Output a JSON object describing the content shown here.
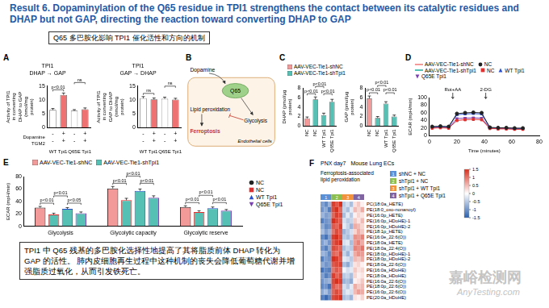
{
  "title": "Result 6. Dopaminylation of the Q65 residue in TPI1 strengthens the contact between its catalytic residues and DHAP but not GAP, directing the reaction toward converting DHAP to GAP",
  "subtitle": "Q65 多巴胺化影响 TPI1 催化活性和方向的机制",
  "summary": "TPI1 中 Q65 残基的多巴胺化选择性地提高了其将脂质前体 DHAP 转化为 GAP 的活性。 肺内皮细胞再生过程中这种机制的丧失会降低葡萄糖代谢并增强脂质过氧化，从而引发铁死亡。",
  "watermark": {
    "name": "嘉峪检测网",
    "site": "AnyTesting.com"
  },
  "diagram": {
    "panel": "B",
    "dopamine": "Dopamine",
    "residue": "Q65",
    "lipid": "Lipid peroxidation",
    "ferroptosis": "Ferroptosis",
    "glycolysis": "Glycolysis",
    "cells": "Endothelial cells"
  },
  "chart_data": [
    {
      "panel": "A",
      "type": "bar",
      "title": "DHAP → GAP",
      "enzyme": "TPI1",
      "y_label": "Activity of TPI1 in converting DHAP to GAP (nmol/mg protein)",
      "categories": [
        [
          "-",
          "-"
        ],
        [
          "+",
          "+"
        ],
        [
          "-",
          "-"
        ],
        [
          "+",
          "+"
        ]
      ],
      "row_labels": [
        "Dopamine",
        "TGM2"
      ],
      "groups": [
        "WT Tpi1",
        "Q65E Tpi1"
      ],
      "values": [
        6.4,
        11.8,
        6.1,
        6.6
      ],
      "errors": [
        0.5,
        0.7,
        0.4,
        0.5
      ],
      "colors": [
        "#ffffff",
        "#ef7272",
        "#ffffff",
        "#ef7272"
      ],
      "ylim": [
        0,
        15
      ],
      "yticks": [
        0,
        5,
        10,
        15
      ],
      "grid": false,
      "annotations": [
        {
          "between": [
            0,
            1
          ],
          "text": "p<0.01"
        },
        {
          "between": [
            2,
            3
          ],
          "text": "ns"
        }
      ]
    },
    {
      "panel": "A",
      "type": "bar",
      "title": "GAP → DHAP",
      "enzyme": "TPI1",
      "y_label": "Activity of TPI1 in converting GAP to DHAP (nmol/mg protein)",
      "categories": [
        [
          "-",
          "-"
        ],
        [
          "+",
          "+"
        ],
        [
          "-",
          "-"
        ],
        [
          "+",
          "+"
        ]
      ],
      "groups": [
        "WT Tpi1",
        "Q65E Tpi1"
      ],
      "values": [
        10.6,
        10.2,
        10.4,
        10.1
      ],
      "errors": [
        0.6,
        0.5,
        0.6,
        0.5
      ],
      "colors": [
        "#ffffff",
        "#ef7272",
        "#ffffff",
        "#ef7272"
      ],
      "ylim": [
        0,
        15
      ],
      "yticks": [
        0,
        5,
        10,
        15
      ],
      "grid": false,
      "annotations": [
        {
          "between": [
            0,
            1
          ],
          "text": "ns"
        },
        {
          "between": [
            2,
            3
          ],
          "text": "ns"
        }
      ]
    },
    {
      "panel": "C",
      "type": "bar",
      "key": [
        {
          "name": "AAV-VEC-Tie1-shNC",
          "color": "#f29a9a"
        },
        {
          "name": "AAV-VEC-Tie1-shTpi1",
          "color": "#56c0b4"
        }
      ],
      "y_label": "DHAP (pmol/μg protein)",
      "categories": [
        "NC",
        "NC",
        "WT Tpi1",
        "Q65E Tpi1"
      ],
      "values": [
        1.6,
        5.6,
        2.3,
        5.1
      ],
      "errors": [
        0.3,
        0.5,
        0.4,
        0.5
      ],
      "colors": [
        "#f29a9a",
        "#56c0b4",
        "#56c0b4",
        "#56c0b4"
      ],
      "ylim": [
        0,
        8
      ],
      "yticks": [
        0,
        2,
        4,
        6,
        8
      ],
      "grid": false,
      "annotations": [
        {
          "between": [
            0,
            1
          ],
          "text": "p<0.01"
        },
        {
          "between": [
            1,
            2
          ],
          "text": "p<0.01"
        },
        {
          "between": [
            2,
            3
          ],
          "text": "p<0.01"
        }
      ]
    },
    {
      "panel": "C",
      "type": "bar",
      "y_label": "GAP (pmol/μg protein)",
      "categories": [
        "NC",
        "NC",
        "WT Tpi1",
        "Q65E Tpi1"
      ],
      "values": [
        5.8,
        1.7,
        4.7,
        2.0
      ],
      "errors": [
        0.5,
        0.3,
        0.4,
        0.3
      ],
      "colors": [
        "#f29a9a",
        "#56c0b4",
        "#56c0b4",
        "#56c0b4"
      ],
      "ylim": [
        0,
        8
      ],
      "yticks": [
        0,
        2,
        4,
        6,
        8
      ],
      "grid": false,
      "annotations": [
        {
          "between": [
            0,
            1
          ],
          "text": "p<0.01"
        },
        {
          "between": [
            1,
            2
          ],
          "text": "p<0.01"
        },
        {
          "between": [
            2,
            3
          ],
          "text": "p<0.01"
        }
      ]
    },
    {
      "panel": "D",
      "type": "line",
      "x_label": "Time (minutes)",
      "y_label": "ECAR (mpH/min)",
      "x": [
        2,
        8,
        14,
        20,
        26,
        32,
        38,
        44,
        50,
        56,
        62,
        68
      ],
      "xlim": [
        0,
        80
      ],
      "xticks": [
        0,
        20,
        40,
        60,
        80
      ],
      "ylim": [
        0,
        100
      ],
      "yticks": [
        0,
        20,
        40,
        60,
        80,
        100
      ],
      "grid": false,
      "legend": "top",
      "events": [
        {
          "x": 17,
          "text": "Rot+AA"
        },
        {
          "x": 41,
          "text": "2-DG"
        }
      ],
      "groups": [
        {
          "name": "AAV-VEC-Tie1-shNC",
          "color": "#f29a9a"
        },
        {
          "name": "AAV-VEC-Tie1-shTpi1",
          "color": "#56c0b4"
        }
      ],
      "series": [
        {
          "name": "NC",
          "group": "AAV-VEC-Tie1-shNC",
          "color": "#222222",
          "marker": "circle",
          "values": [
            24,
            25,
            24,
            58,
            60,
            61,
            60,
            22,
            21,
            21,
            20,
            20
          ]
        },
        {
          "name": "NC",
          "group": "AAV-VEC-Tie1-shTpi1",
          "color": "#e03030",
          "marker": "square",
          "values": [
            20,
            21,
            20,
            40,
            42,
            43,
            42,
            19,
            18,
            18,
            17,
            17
          ]
        },
        {
          "name": "WT Tpi1",
          "group": "AAV-VEC-Tie1-shTpi1",
          "color": "#2a4fd0",
          "marker": "triangle",
          "values": [
            23,
            24,
            23,
            55,
            57,
            58,
            57,
            21,
            20,
            20,
            19,
            19
          ]
        },
        {
          "name": "Q65E Tpi1",
          "group": "AAV-VEC-Tie1-shTpi1",
          "color": "#7a3fb0",
          "marker": "triangle-down",
          "values": [
            21,
            22,
            21,
            45,
            46,
            47,
            46,
            20,
            19,
            19,
            18,
            18
          ]
        }
      ]
    },
    {
      "panel": "E",
      "type": "bar",
      "y_label": "ECAR (mpH/min)",
      "categories": [
        "Glycolysis",
        "Glycolytic capacity",
        "Glycolytic reserve"
      ],
      "ylim": [
        0,
        80
      ],
      "yticks": [
        0,
        20,
        40,
        60,
        80
      ],
      "grid": false,
      "legend": "right",
      "groups": [
        {
          "name": "AAV-VEC-Tie1-shNC",
          "color": "#f29a9a"
        },
        {
          "name": "AAV-VEC-Tie1-shTpi1",
          "color": "#56c0b4"
        }
      ],
      "series": [
        {
          "name": "NC",
          "group": "AAV-VEC-Tie1-shNC",
          "color": "#222222",
          "marker": "circle",
          "values": [
            30,
            61,
            31
          ],
          "errors": [
            2,
            3,
            2
          ]
        },
        {
          "name": "NC",
          "group": "AAV-VEC-Tie1-shTpi1",
          "color": "#e03030",
          "marker": "square",
          "values": [
            19,
            42,
            23
          ],
          "errors": [
            2,
            3,
            2
          ]
        },
        {
          "name": "WT Tpi1",
          "group": "AAV-VEC-Tie1-shTpi1",
          "color": "#2a4fd0",
          "marker": "triangle",
          "values": [
            28,
            57,
            29
          ],
          "errors": [
            2,
            3,
            2
          ]
        },
        {
          "name": "Q65E Tpi1",
          "group": "AAV-VEC-Tie1-shTpi1",
          "color": "#7a3fb0",
          "marker": "triangle-down",
          "values": [
            21,
            46,
            25
          ],
          "errors": [
            2,
            3,
            2
          ]
        }
      ],
      "annotations": [
        {
          "category": 0,
          "between": [
            0,
            1
          ],
          "text": "p<0.01"
        },
        {
          "category": 0,
          "between": [
            1,
            2
          ],
          "text": "p<0.01"
        },
        {
          "category": 0,
          "between": [
            2,
            3
          ],
          "text": "p<0.05"
        },
        {
          "category": 1,
          "between": [
            0,
            1
          ],
          "text": "p<0.01"
        },
        {
          "category": 1,
          "between": [
            1,
            2
          ],
          "text": "p<0.01"
        },
        {
          "category": 1,
          "between": [
            2,
            3
          ],
          "text": "p<0.01"
        },
        {
          "category": 2,
          "between": [
            0,
            1
          ],
          "text": "p<0.01"
        },
        {
          "category": 2,
          "between": [
            1,
            2
          ],
          "text": "p<0.01"
        },
        {
          "category": 2,
          "between": [
            2,
            3
          ],
          "text": "p<0.01"
        }
      ]
    },
    {
      "panel": "F",
      "type": "heatmap",
      "title": "PNX day7",
      "subtitle": "Mouse Lung ECs",
      "row_group": "Ferroptosis-associated lipid peroxidation",
      "groups": [
        {
          "id": 1,
          "name": "shNC + NC",
          "color": "#5b8fd6"
        },
        {
          "id": 2,
          "name": "shTpi1 + NC",
          "color": "#8bbf4f"
        },
        {
          "id": 3,
          "name": "shTpi1 + WT Tpi1",
          "color": "#f0923e"
        },
        {
          "id": 4,
          "name": "shTpi1 + Q65E Tpi1",
          "color": "#8064a2"
        }
      ],
      "column_groups": [
        1,
        1,
        1,
        2,
        2,
        2,
        3,
        3,
        3,
        4,
        4,
        4
      ],
      "rows": [
        "PC(18:0a_HETE)",
        "PE(18:0_oxo-nonanoyl)",
        "PE(16:0p_HETE)",
        "PE(16:0p_HDoHE)-1",
        "PE(16:0p_HDoHE)-2",
        "PE(18:1p_HETE)",
        "PE(16:0e_22:6(O))",
        "PE(18:0a_HETE)",
        "PE(18:0a_22:4(O))",
        "PE(18:0p_HDoHE)-1",
        "PE(18:0p_HDoHE)-2",
        "PE(18:0a_22:6(O))",
        "PE(16:0a_HDoHE)",
        "PE(18:0a_HDoHE)",
        "PE(16:0a_22:6(O))",
        "PE(18:0p_22:6(O))",
        "PE(16:0p_22:6(O))",
        "PE(20:0a_HDoHE)"
      ],
      "cells": [
        [
          -0.9,
          -1.1,
          -0.7,
          1.4,
          1.2,
          1.5,
          -0.5,
          -0.3,
          -0.6,
          0.2,
          0.4,
          0.1
        ],
        [
          -1.0,
          -0.8,
          -1.2,
          1.3,
          1.5,
          1.1,
          -0.4,
          -0.6,
          -0.2,
          0.5,
          0.3,
          0.6
        ],
        [
          -0.7,
          -0.9,
          -0.8,
          1.1,
          1.4,
          1.3,
          -0.6,
          -0.2,
          -0.5,
          0.1,
          0.3,
          0.2
        ],
        [
          -1.2,
          -1.0,
          -0.9,
          1.5,
          1.3,
          1.2,
          -0.3,
          -0.5,
          -0.4,
          0.4,
          0.2,
          0.5
        ],
        [
          -0.8,
          -1.1,
          -1.0,
          1.2,
          1.1,
          1.4,
          -0.2,
          -0.4,
          -0.7,
          0.6,
          0.5,
          0.3
        ],
        [
          -0.6,
          -0.9,
          -0.7,
          1.0,
          1.3,
          1.2,
          -0.7,
          -0.5,
          -0.3,
          0.3,
          0.6,
          0.4
        ],
        [
          -1.1,
          -1.3,
          -0.9,
          1.4,
          1.5,
          1.3,
          -0.5,
          -0.6,
          -0.4,
          0.8,
          0.7,
          0.9
        ],
        [
          -0.9,
          -0.7,
          -1.0,
          1.2,
          1.4,
          1.5,
          -0.3,
          -0.2,
          -0.6,
          0.7,
          0.9,
          0.6
        ],
        [
          -1.0,
          -1.2,
          -0.8,
          1.3,
          1.2,
          1.1,
          -0.6,
          -0.4,
          -0.5,
          0.9,
          0.8,
          1.0
        ],
        [
          -0.7,
          -0.8,
          -1.1,
          1.1,
          1.0,
          1.3,
          -0.4,
          -0.7,
          -0.3,
          0.6,
          0.8,
          0.7
        ],
        [
          -1.2,
          -0.9,
          -1.0,
          1.5,
          1.4,
          1.2,
          -0.2,
          -0.3,
          -0.5,
          0.5,
          0.4,
          0.6
        ],
        [
          -0.8,
          -1.0,
          -0.9,
          1.2,
          1.3,
          1.4,
          -0.6,
          -0.8,
          -0.4,
          0.2,
          0.3,
          0.1
        ],
        [
          -1.3,
          -1.1,
          -1.2,
          1.0,
          1.2,
          1.1,
          -0.1,
          -0.3,
          -0.2,
          0.4,
          0.2,
          0.3
        ],
        [
          -0.9,
          -1.2,
          -1.0,
          1.4,
          1.1,
          1.3,
          -0.5,
          -0.4,
          -0.6,
          0.3,
          0.1,
          0.2
        ],
        [
          -1.0,
          -0.8,
          -0.7,
          1.3,
          1.5,
          1.4,
          -0.7,
          -0.6,
          -0.8,
          0.1,
          0.2,
          0.4
        ],
        [
          -1.1,
          -1.0,
          -1.3,
          1.2,
          1.0,
          1.1,
          -0.3,
          -0.5,
          -0.2,
          0.6,
          0.4,
          0.5
        ],
        [
          -0.8,
          -0.6,
          -0.9,
          1.1,
          1.3,
          1.2,
          -0.4,
          -0.2,
          -0.3,
          0.5,
          0.7,
          0.6
        ],
        [
          -1.2,
          -1.4,
          -1.1,
          1.3,
          1.4,
          1.5,
          -0.6,
          -0.5,
          -0.7,
          0.2,
          0.1,
          0.3
        ]
      ],
      "colorbar": {
        "range": [
          -1.5,
          1.5
        ],
        "ticks": [
          1.5,
          1,
          0.5,
          0,
          -0.5,
          -1,
          -1.5
        ]
      }
    }
  ]
}
